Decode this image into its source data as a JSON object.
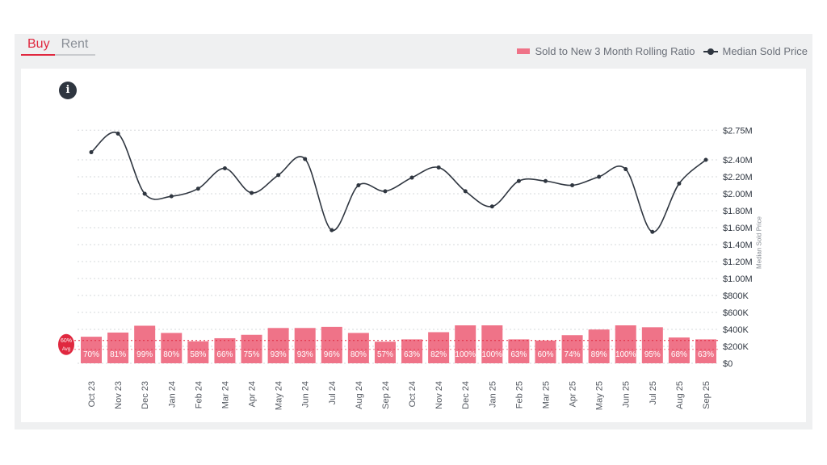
{
  "tabs": [
    {
      "label": "Buy",
      "active": true
    },
    {
      "label": "Rent",
      "active": false
    }
  ],
  "legend": {
    "bars": "Sold to New 3 Month Rolling Ratio",
    "line": "Median Sold Price"
  },
  "info_icon": "i",
  "threshold_badge": {
    "value": "60%",
    "sub": "Avg"
  },
  "colors": {
    "bar": "#ef7388",
    "line": "#2f3640",
    "accent": "#e0283f"
  },
  "chart_data": {
    "type": "bar+line",
    "categories": [
      "Oct 23",
      "Nov 23",
      "Dec 23",
      "Jan 24",
      "Feb 24",
      "Mar 24",
      "Apr 24",
      "May 24",
      "Jun 24",
      "Jul 24",
      "Aug 24",
      "Sep 24",
      "Oct 24",
      "Nov 24",
      "Dec 24",
      "Jan 25",
      "Feb 25",
      "Mar 25",
      "Apr 25",
      "May 25",
      "Jun 25",
      "Jul 25",
      "Aug 25",
      "Sep 25"
    ],
    "series": [
      {
        "name": "Sold to New 3 Month Rolling Ratio",
        "type": "bar",
        "unit": "%",
        "values": [
          70,
          81,
          99,
          80,
          58,
          66,
          75,
          93,
          93,
          96,
          80,
          57,
          63,
          82,
          100,
          100,
          63,
          60,
          74,
          89,
          100,
          95,
          68,
          63
        ]
      },
      {
        "name": "Median Sold Price",
        "type": "line",
        "unit": "$M",
        "values": [
          2.49,
          2.71,
          2.0,
          1.97,
          2.06,
          2.3,
          2.01,
          2.22,
          2.41,
          1.57,
          2.1,
          2.03,
          2.19,
          2.31,
          2.03,
          1.85,
          2.15,
          2.15,
          2.1,
          2.2,
          2.29,
          1.55,
          2.12,
          2.4
        ]
      }
    ],
    "y_right_label": "Median Sold Price",
    "y_ticks": [
      {
        "v": 0,
        "label": "$0"
      },
      {
        "v": 0.2,
        "label": "$200K"
      },
      {
        "v": 0.4,
        "label": "$400K"
      },
      {
        "v": 0.6,
        "label": "$600K"
      },
      {
        "v": 0.8,
        "label": "$800K"
      },
      {
        "v": 1.0,
        "label": "$1.00M"
      },
      {
        "v": 1.2,
        "label": "$1.20M"
      },
      {
        "v": 1.4,
        "label": "$1.40M"
      },
      {
        "v": 1.6,
        "label": "$1.60M"
      },
      {
        "v": 1.8,
        "label": "$1.80M"
      },
      {
        "v": 2.0,
        "label": "$2.00M"
      },
      {
        "v": 2.2,
        "label": "$2.20M"
      },
      {
        "v": 2.4,
        "label": "$2.40M"
      },
      {
        "v": 2.75,
        "label": "$2.75M"
      }
    ],
    "ylim": [
      0,
      2.75
    ],
    "threshold": 60
  }
}
